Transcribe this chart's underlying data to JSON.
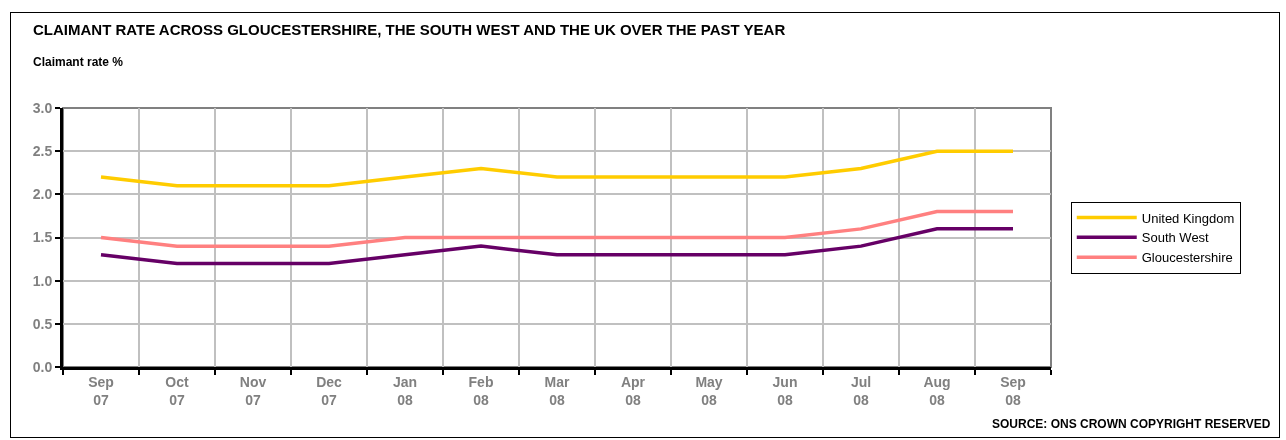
{
  "chart_data": {
    "type": "line",
    "title": "CLAIMANT RATE ACROSS GLOUCESTERSHIRE, THE SOUTH WEST AND THE UK OVER THE PAST YEAR",
    "ylabel": "Claimant rate %",
    "categories": [
      "Sep 07",
      "Oct 07",
      "Nov 07",
      "Dec 07",
      "Jan 08",
      "Feb 08",
      "Mar 08",
      "Apr 08",
      "May 08",
      "Jun 08",
      "Jul 08",
      "Aug 08",
      "Sep 08"
    ],
    "series": [
      {
        "name": "United Kingdom",
        "color": "#ffcc00",
        "values": [
          2.2,
          2.1,
          2.1,
          2.1,
          2.2,
          2.3,
          2.2,
          2.2,
          2.2,
          2.2,
          2.3,
          2.5,
          2.5
        ]
      },
      {
        "name": "South West",
        "color": "#660066",
        "values": [
          1.3,
          1.2,
          1.2,
          1.2,
          1.3,
          1.4,
          1.3,
          1.3,
          1.3,
          1.3,
          1.4,
          1.6,
          1.6
        ]
      },
      {
        "name": "Gloucestershire",
        "color": "#ff8080",
        "values": [
          1.5,
          1.4,
          1.4,
          1.4,
          1.5,
          1.5,
          1.5,
          1.5,
          1.5,
          1.5,
          1.6,
          1.8,
          1.8
        ]
      }
    ],
    "ylim": [
      0,
      3
    ],
    "yticks": [
      {
        "value": 0,
        "label": "0.0"
      },
      0.5,
      {
        "value": 1,
        "label": "1.0"
      },
      1.5,
      {
        "value": 2,
        "label": "2.0"
      },
      2.5,
      {
        "value": 3,
        "label": "3.0"
      }
    ],
    "grid": true,
    "legend": "right",
    "marker": "none",
    "line_style": "solid",
    "annotations": [
      "SOURCE: ONS CROWN COPYRIGHT RESERVED"
    ]
  }
}
